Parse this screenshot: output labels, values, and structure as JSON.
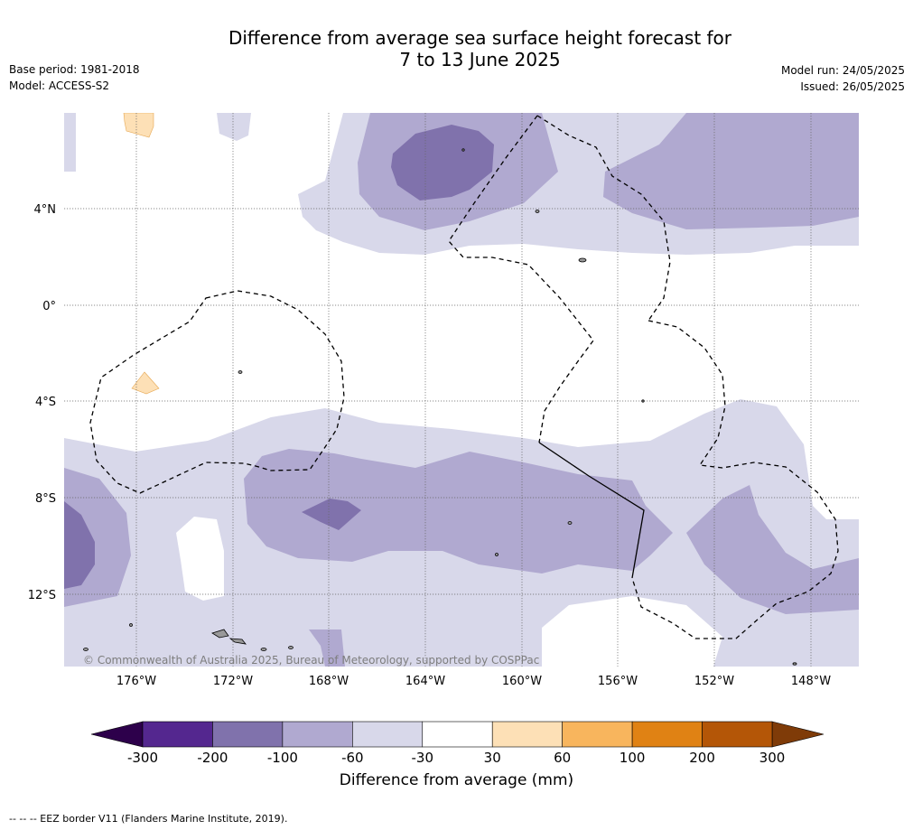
{
  "title": [
    "Difference from average sea surface height forecast for",
    "7 to 13 June 2025"
  ],
  "meta_left": [
    "Base period: 1981-2018",
    "Model: ACCESS-S2"
  ],
  "meta_right": [
    "Model run: 24/05/2025",
    "Issued: 26/05/2025"
  ],
  "lat_labels": [
    "4°N",
    "0°",
    "4°S",
    "8°S",
    "12°S"
  ],
  "lon_labels": [
    "176°W",
    "172°W",
    "168°W",
    "164°W",
    "160°W",
    "156°W",
    "152°W",
    "148°W"
  ],
  "copyright": "© Commonwealth of Australia 2025, Bureau of Meteorology, supported by COSPPac",
  "colorbar": {
    "label": "Difference from average (mm)",
    "ticks": [
      "-300",
      "-200",
      "-100",
      "-60",
      "-30",
      "30",
      "60",
      "100",
      "200",
      "300"
    ],
    "colors": [
      "#54278f",
      "#8072ac",
      "#b0a9d0",
      "#d8d8ea",
      "#ffffff",
      "#fde0b6",
      "#f8b55d",
      "#e08214",
      "#b45607"
    ],
    "under_color": "#2d004b",
    "over_color": "#7f3b08"
  },
  "footnote": "-- -- -- EEZ border V11 (Flanders Marine Institute, 2019)."
}
